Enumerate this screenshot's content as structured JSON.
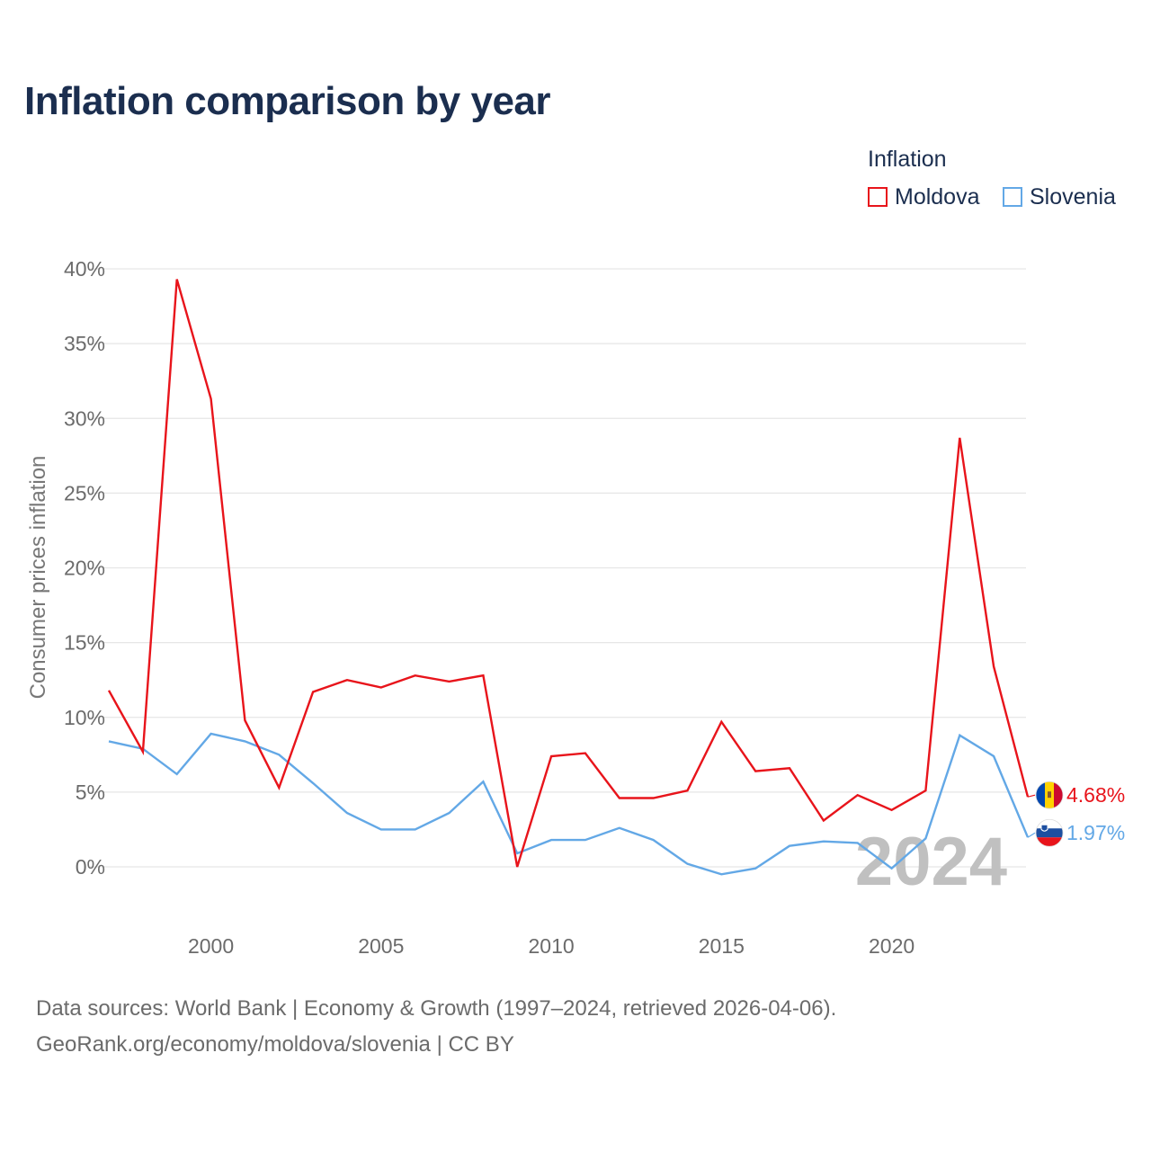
{
  "chart_data": {
    "type": "line",
    "title": "Inflation comparison by year",
    "legend_title": "Inflation",
    "legend_position": "top-right",
    "ylabel": "Consumer prices inflation",
    "xlabel": "",
    "x": [
      1997,
      1998,
      1999,
      2000,
      2001,
      2002,
      2003,
      2004,
      2005,
      2006,
      2007,
      2008,
      2009,
      2010,
      2011,
      2012,
      2013,
      2014,
      2015,
      2016,
      2017,
      2018,
      2019,
      2020,
      2021,
      2022,
      2023,
      2024
    ],
    "xlim": [
      1997,
      2024
    ],
    "ylim": [
      -2.5,
      40
    ],
    "x_ticks": [
      2000,
      2005,
      2010,
      2015,
      2020
    ],
    "x_tick_labels": [
      "2000",
      "2005",
      "2010",
      "2015",
      "2020"
    ],
    "y_ticks": [
      0,
      5,
      10,
      15,
      20,
      25,
      30,
      35,
      40
    ],
    "y_tick_labels": [
      "0%",
      "5%",
      "10%",
      "15%",
      "20%",
      "25%",
      "30%",
      "35%",
      "40%"
    ],
    "grid": true,
    "current_year": "2024",
    "series": [
      {
        "name": "Moldova",
        "color": "#e8141b",
        "end_label": "4.68%",
        "values": [
          11.8,
          7.7,
          39.3,
          31.3,
          9.8,
          5.3,
          11.7,
          12.5,
          12.0,
          12.8,
          12.4,
          12.8,
          0.0,
          7.4,
          7.6,
          4.6,
          4.6,
          5.1,
          9.7,
          6.4,
          6.6,
          3.1,
          4.8,
          3.8,
          5.1,
          28.7,
          13.4,
          4.68
        ]
      },
      {
        "name": "Slovenia",
        "color": "#63a8e6",
        "end_label": "1.97%",
        "values": [
          8.4,
          7.9,
          6.2,
          8.9,
          8.4,
          7.5,
          5.6,
          3.6,
          2.5,
          2.5,
          3.6,
          5.7,
          0.9,
          1.8,
          1.8,
          2.6,
          1.8,
          0.2,
          -0.5,
          -0.1,
          1.4,
          1.7,
          1.6,
          -0.1,
          1.9,
          8.8,
          7.4,
          1.97
        ]
      }
    ]
  },
  "footer": {
    "line1": "Data sources: World Bank | Economy & Growth (1997–2024, retrieved 2026-04-06).",
    "line2": "GeoRank.org/economy/moldova/slovenia | CC BY"
  }
}
